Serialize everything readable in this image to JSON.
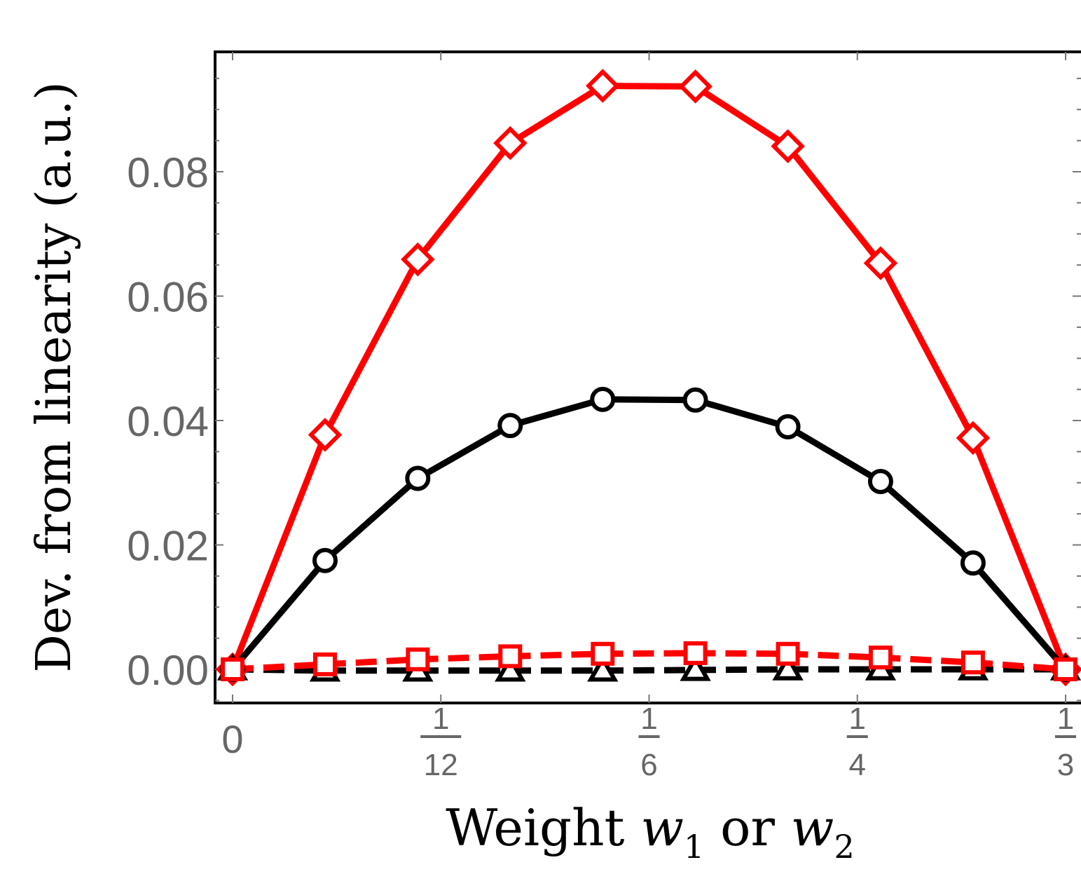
{
  "chart_data": {
    "type": "line",
    "xlabel": {
      "text": "Weight ",
      "var1": "w",
      "sub1": "1",
      "mid": " or ",
      "var2": "w",
      "sub2": "2"
    },
    "ylabel": "Dev. from linearity (a.u.)",
    "xlim": [
      -0.0076,
      0.3333
    ],
    "ylim": [
      -0.0056,
      0.099
    ],
    "x_ticks": [
      {
        "value": 0,
        "label": "0"
      },
      {
        "value": 0.08333,
        "num": "1",
        "den": "12"
      },
      {
        "value": 0.16667,
        "num": "1",
        "den": "6"
      },
      {
        "value": 0.25,
        "num": "1",
        "den": "4"
      },
      {
        "value": 0.33333,
        "num": "1",
        "den": "3"
      }
    ],
    "y_ticks": [
      {
        "value": 0.0,
        "label": "0.00"
      },
      {
        "value": 0.02,
        "label": "0.02"
      },
      {
        "value": 0.04,
        "label": "0.04"
      },
      {
        "value": 0.06,
        "label": "0.06"
      },
      {
        "value": 0.08,
        "label": "0.08"
      }
    ],
    "grid": false,
    "series": [
      {
        "style": "solid",
        "marker": "diamond",
        "color": "#ff0000",
        "points": [
          [
            0,
            0
          ],
          [
            0.037,
            0.0377
          ],
          [
            0.0741,
            0.0659
          ],
          [
            0.1111,
            0.0846
          ],
          [
            0.1481,
            0.0938
          ],
          [
            0.1852,
            0.0937
          ],
          [
            0.2222,
            0.0841
          ],
          [
            0.2593,
            0.0653
          ],
          [
            0.2963,
            0.0372
          ],
          [
            0.3333,
            0
          ]
        ]
      },
      {
        "style": "solid",
        "marker": "circle",
        "color": "#000000",
        "points": [
          [
            0,
            0
          ],
          [
            0.037,
            0.0175
          ],
          [
            0.0741,
            0.0307
          ],
          [
            0.1111,
            0.0392
          ],
          [
            0.1481,
            0.0434
          ],
          [
            0.1852,
            0.0433
          ],
          [
            0.2222,
            0.039
          ],
          [
            0.2593,
            0.0302
          ],
          [
            0.2963,
            0.0171
          ],
          [
            0.3333,
            0
          ]
        ]
      },
      {
        "style": "dashed",
        "marker": "triangle",
        "color": "#000000",
        "points": [
          [
            0,
            0
          ],
          [
            0.037,
            -0.0002
          ],
          [
            0.0741,
            -0.0002
          ],
          [
            0.1111,
            -0.0002
          ],
          [
            0.1481,
            -0.0002
          ],
          [
            0.1852,
            -0.0001
          ],
          [
            0.2222,
            0
          ],
          [
            0.2593,
            0
          ],
          [
            0.2963,
            0
          ],
          [
            0.3333,
            0
          ]
        ]
      },
      {
        "style": "dashed",
        "marker": "square",
        "color": "#ff0000",
        "points": [
          [
            0,
            0
          ],
          [
            0.037,
            0.0008
          ],
          [
            0.0741,
            0.0016
          ],
          [
            0.1111,
            0.0021
          ],
          [
            0.1481,
            0.0025
          ],
          [
            0.1852,
            0.0026
          ],
          [
            0.2222,
            0.0025
          ],
          [
            0.2593,
            0.0019
          ],
          [
            0.2963,
            0.0011
          ],
          [
            0.3333,
            0
          ]
        ]
      }
    ]
  }
}
